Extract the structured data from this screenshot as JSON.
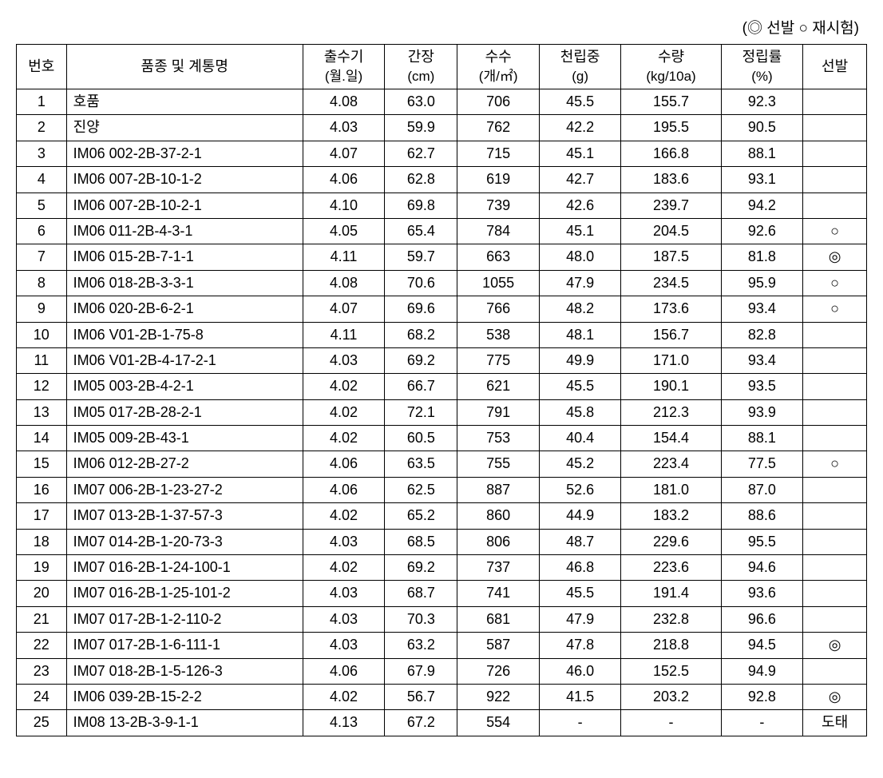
{
  "legend": "(◎ 선발   ○ 재시험)",
  "headers": {
    "num": "번호",
    "name": "품종 및 계통명",
    "date_main": "출수기",
    "date_sub": "(월.일)",
    "height_main": "간장",
    "height_sub": "(cm)",
    "count_main": "수수",
    "count_sub": "(개/㎡)",
    "weight_main": "천립중",
    "weight_sub": "(g)",
    "yield_main": "수량",
    "yield_sub": "(kg/10a)",
    "rate_main": "정립률",
    "rate_sub": "(%)",
    "sel": "선발"
  },
  "rows": [
    {
      "num": "1",
      "name": "호품",
      "date": "4.08",
      "height": "63.0",
      "count": "706",
      "weight": "45.5",
      "yield": "155.7",
      "rate": "92.3",
      "sel": ""
    },
    {
      "num": "2",
      "name": "진양",
      "date": "4.03",
      "height": "59.9",
      "count": "762",
      "weight": "42.2",
      "yield": "195.5",
      "rate": "90.5",
      "sel": ""
    },
    {
      "num": "3",
      "name": "IM06 002-2B-37-2-1",
      "date": "4.07",
      "height": "62.7",
      "count": "715",
      "weight": "45.1",
      "yield": "166.8",
      "rate": "88.1",
      "sel": ""
    },
    {
      "num": "4",
      "name": "IM06 007-2B-10-1-2",
      "date": "4.06",
      "height": "62.8",
      "count": "619",
      "weight": "42.7",
      "yield": "183.6",
      "rate": "93.1",
      "sel": ""
    },
    {
      "num": "5",
      "name": "IM06 007-2B-10-2-1",
      "date": "4.10",
      "height": "69.8",
      "count": "739",
      "weight": "42.6",
      "yield": "239.7",
      "rate": "94.2",
      "sel": ""
    },
    {
      "num": "6",
      "name": "IM06 011-2B-4-3-1",
      "date": "4.05",
      "height": "65.4",
      "count": "784",
      "weight": "45.1",
      "yield": "204.5",
      "rate": "92.6",
      "sel": "○"
    },
    {
      "num": "7",
      "name": "IM06 015-2B-7-1-1",
      "date": "4.11",
      "height": "59.7",
      "count": "663",
      "weight": "48.0",
      "yield": "187.5",
      "rate": "81.8",
      "sel": "◎"
    },
    {
      "num": "8",
      "name": "IM06 018-2B-3-3-1",
      "date": "4.08",
      "height": "70.6",
      "count": "1055",
      "weight": "47.9",
      "yield": "234.5",
      "rate": "95.9",
      "sel": "○"
    },
    {
      "num": "9",
      "name": "IM06 020-2B-6-2-1",
      "date": "4.07",
      "height": "69.6",
      "count": "766",
      "weight": "48.2",
      "yield": "173.6",
      "rate": "93.4",
      "sel": "○"
    },
    {
      "num": "10",
      "name": "IM06 V01-2B-1-75-8",
      "date": "4.11",
      "height": "68.2",
      "count": "538",
      "weight": "48.1",
      "yield": "156.7",
      "rate": "82.8",
      "sel": ""
    },
    {
      "num": "11",
      "name": "IM06 V01-2B-4-17-2-1",
      "date": "4.03",
      "height": "69.2",
      "count": "775",
      "weight": "49.9",
      "yield": "171.0",
      "rate": "93.4",
      "sel": ""
    },
    {
      "num": "12",
      "name": "IM05 003-2B-4-2-1",
      "date": "4.02",
      "height": "66.7",
      "count": "621",
      "weight": "45.5",
      "yield": "190.1",
      "rate": "93.5",
      "sel": ""
    },
    {
      "num": "13",
      "name": "IM05 017-2B-28-2-1",
      "date": "4.02",
      "height": "72.1",
      "count": "791",
      "weight": "45.8",
      "yield": "212.3",
      "rate": "93.9",
      "sel": ""
    },
    {
      "num": "14",
      "name": "IM05 009-2B-43-1",
      "date": "4.02",
      "height": "60.5",
      "count": "753",
      "weight": "40.4",
      "yield": "154.4",
      "rate": "88.1",
      "sel": ""
    },
    {
      "num": "15",
      "name": "IM06 012-2B-27-2",
      "date": "4.06",
      "height": "63.5",
      "count": "755",
      "weight": "45.2",
      "yield": "223.4",
      "rate": "77.5",
      "sel": "○"
    },
    {
      "num": "16",
      "name": "IM07 006-2B-1-23-27-2",
      "date": "4.06",
      "height": "62.5",
      "count": "887",
      "weight": "52.6",
      "yield": "181.0",
      "rate": "87.0",
      "sel": ""
    },
    {
      "num": "17",
      "name": "IM07 013-2B-1-37-57-3",
      "date": "4.02",
      "height": "65.2",
      "count": "860",
      "weight": "44.9",
      "yield": "183.2",
      "rate": "88.6",
      "sel": ""
    },
    {
      "num": "18",
      "name": "IM07 014-2B-1-20-73-3",
      "date": "4.03",
      "height": "68.5",
      "count": "806",
      "weight": "48.7",
      "yield": "229.6",
      "rate": "95.5",
      "sel": ""
    },
    {
      "num": "19",
      "name": "IM07 016-2B-1-24-100-1",
      "date": "4.02",
      "height": "69.2",
      "count": "737",
      "weight": "46.8",
      "yield": "223.6",
      "rate": "94.6",
      "sel": ""
    },
    {
      "num": "20",
      "name": "IM07 016-2B-1-25-101-2",
      "date": "4.03",
      "height": "68.7",
      "count": "741",
      "weight": "45.5",
      "yield": "191.4",
      "rate": "93.6",
      "sel": ""
    },
    {
      "num": "21",
      "name": "IM07 017-2B-1-2-110-2",
      "date": "4.03",
      "height": "70.3",
      "count": "681",
      "weight": "47.9",
      "yield": "232.8",
      "rate": "96.6",
      "sel": ""
    },
    {
      "num": "22",
      "name": "IM07 017-2B-1-6-111-1",
      "date": "4.03",
      "height": "63.2",
      "count": "587",
      "weight": "47.8",
      "yield": "218.8",
      "rate": "94.5",
      "sel": "◎"
    },
    {
      "num": "23",
      "name": "IM07 018-2B-1-5-126-3",
      "date": "4.06",
      "height": "67.9",
      "count": "726",
      "weight": "46.0",
      "yield": "152.5",
      "rate": "94.9",
      "sel": ""
    },
    {
      "num": "24",
      "name": "IM06 039-2B-15-2-2",
      "date": "4.02",
      "height": "56.7",
      "count": "922",
      "weight": "41.5",
      "yield": "203.2",
      "rate": "92.8",
      "sel": "◎"
    },
    {
      "num": "25",
      "name": "IM08 13-2B-3-9-1-1",
      "date": "4.13",
      "height": "67.2",
      "count": "554",
      "weight": "-",
      "yield": "-",
      "rate": "-",
      "sel": "도태"
    }
  ]
}
